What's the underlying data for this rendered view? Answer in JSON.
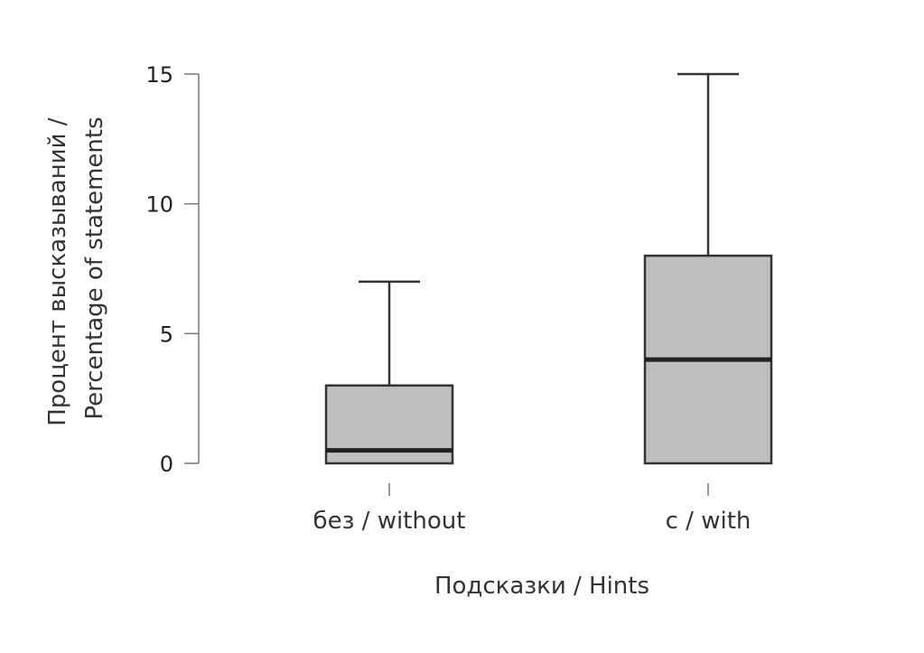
{
  "chart_data": {
    "type": "boxplot",
    "title": "",
    "xlabel": "Подсказки / Hints",
    "ylabel_lines": [
      "Процент высказываний /",
      "Percentage of statements"
    ],
    "ylim": [
      0,
      15
    ],
    "yticks": [
      0,
      5,
      10,
      15
    ],
    "ytick_labels": [
      "0",
      "5",
      "10",
      "15"
    ],
    "categories": [
      "без / without",
      "с / with"
    ],
    "boxes": [
      {
        "category": "без / without",
        "min": 0,
        "q1": 0,
        "median": 0.5,
        "q3": 3,
        "max": 7
      },
      {
        "category": "с / with",
        "min": 0,
        "q1": 0,
        "median": 4,
        "q3": 8,
        "max": 15
      }
    ],
    "grid": false,
    "colors": {
      "box_fill": "#bfbfbf",
      "box_stroke": "#333333",
      "median": "#222222",
      "axis": "#777777",
      "text": "#333333"
    }
  }
}
